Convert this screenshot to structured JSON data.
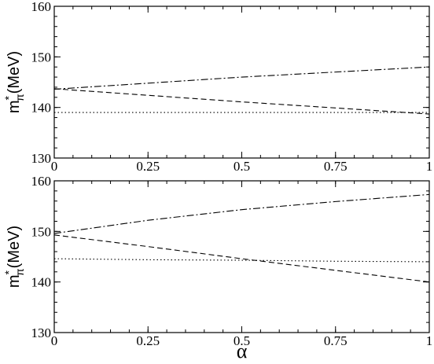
{
  "chart_data": [
    {
      "type": "line",
      "title": "",
      "xlabel": "",
      "ylabel": "m*π(MeV)",
      "xlim": [
        0,
        1
      ],
      "ylim": [
        130,
        160
      ],
      "xticks": [
        0,
        0.25,
        0.5,
        0.75,
        1
      ],
      "xtick_labels": [
        "0",
        "0.25",
        "0.5",
        "0.75",
        "1"
      ],
      "yticks": [
        130,
        140,
        150,
        160
      ],
      "ytick_labels": [
        "130",
        "140",
        "150",
        "160"
      ],
      "grid": false,
      "series": [
        {
          "style": "dotted",
          "x": [
            0,
            0.25,
            0.5,
            0.75,
            1
          ],
          "y": [
            139,
            139,
            139,
            139,
            139
          ]
        },
        {
          "style": "dashed",
          "x": [
            0,
            0.25,
            0.5,
            0.75,
            1
          ],
          "y": [
            143.7,
            142.4,
            141.1,
            139.9,
            138.7
          ]
        },
        {
          "style": "dashdot",
          "x": [
            0,
            0.25,
            0.5,
            0.75,
            1
          ],
          "y": [
            143.6,
            144.8,
            146.0,
            147.0,
            148.0
          ]
        }
      ]
    },
    {
      "type": "line",
      "title": "",
      "xlabel": "α",
      "ylabel": "m*π(MeV)",
      "xlim": [
        0,
        1
      ],
      "ylim": [
        130,
        160
      ],
      "xticks": [
        0,
        0.25,
        0.5,
        0.75,
        1
      ],
      "xtick_labels": [
        "0",
        "0.25",
        "0.5",
        "0.75",
        "1"
      ],
      "yticks": [
        130,
        140,
        150,
        160
      ],
      "ytick_labels": [
        "130",
        "140",
        "150",
        "160"
      ],
      "grid": false,
      "series": [
        {
          "style": "dotted",
          "x": [
            0,
            0.25,
            0.5,
            0.75,
            1
          ],
          "y": [
            144.6,
            144.4,
            144.3,
            144.1,
            144.0
          ]
        },
        {
          "style": "dashed",
          "x": [
            0,
            0.25,
            0.5,
            0.75,
            1
          ],
          "y": [
            149.3,
            147.0,
            144.6,
            142.3,
            140.0
          ]
        },
        {
          "style": "dashdot",
          "x": [
            0,
            0.25,
            0.5,
            0.75,
            1
          ],
          "y": [
            149.6,
            152.2,
            154.3,
            155.9,
            157.3
          ]
        }
      ]
    }
  ]
}
